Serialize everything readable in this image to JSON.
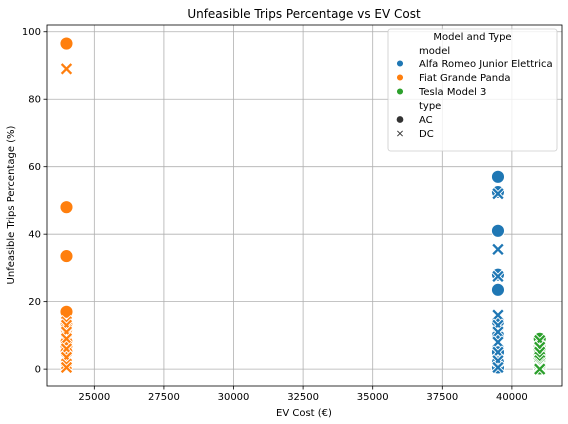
{
  "chart_data": {
    "type": "scatter",
    "title": "Unfeasible Trips Percentage vs EV Cost",
    "xlabel": "EV Cost (€)",
    "ylabel": "Unfeasible Trips Percentage (%)",
    "xlim": [
      23300,
      41800
    ],
    "ylim": [
      -5,
      102
    ],
    "xticks": [
      25000,
      27500,
      30000,
      32500,
      35000,
      37500,
      40000
    ],
    "yticks": [
      0,
      20,
      40,
      60,
      80,
      100
    ],
    "grid": true,
    "legend": {
      "title": "Model and Type",
      "placement": "top-right",
      "hue_title": "model",
      "style_title": "type",
      "styles": [
        {
          "name": "AC",
          "marker": "circle"
        },
        {
          "name": "DC",
          "marker": "x"
        }
      ]
    },
    "series": [
      {
        "name": "Alfa Romeo Junior Elettrica",
        "color": "#1f77b4",
        "x": 39500,
        "AC": [
          57,
          52.5,
          41,
          28,
          23.5,
          14,
          10,
          5,
          2,
          0.5
        ],
        "DC": [
          52,
          35.5,
          27.5,
          16,
          13,
          11,
          8,
          5,
          2.5,
          0.5
        ]
      },
      {
        "name": "Fiat Grande Panda",
        "color": "#ff7f0e",
        "x": 24000,
        "AC": [
          96.5,
          48,
          33.5,
          17,
          13,
          12,
          8,
          7,
          5,
          2
        ],
        "DC": [
          89,
          14,
          13,
          11,
          9,
          6,
          3.5,
          1.5,
          0.5
        ]
      },
      {
        "name": "Tesla Model 3",
        "color": "#2ca02c",
        "x": 41000,
        "AC": [
          9,
          7,
          5.5,
          4,
          3,
          2,
          1.5,
          1,
          0.5,
          0.2
        ],
        "DC": [
          8.5,
          6.5,
          5,
          3.5,
          2.5,
          1.5,
          1,
          0.5,
          0.3,
          0
        ]
      }
    ]
  }
}
